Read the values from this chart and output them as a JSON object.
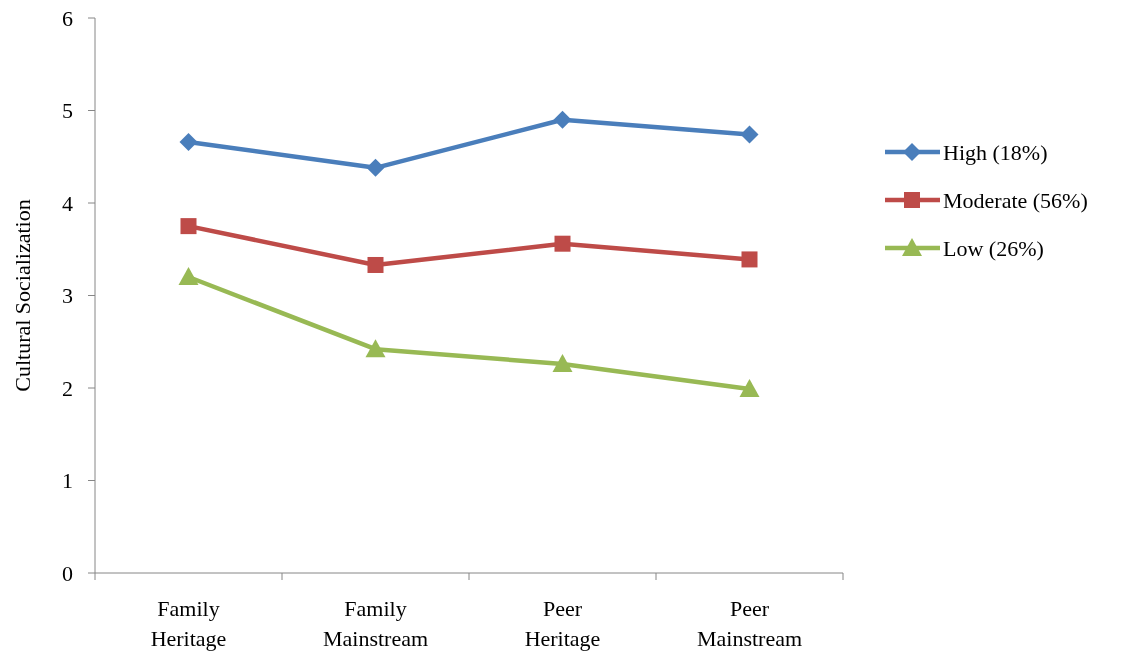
{
  "chart_data": {
    "type": "line",
    "ylabel": "Cultural Socialization",
    "categories": [
      "Family Heritage",
      "Family Mainstream",
      "Peer Heritage",
      "Peer Mainstream"
    ],
    "series": [
      {
        "name": "High (18%)",
        "color": "#4a7ebb",
        "values": [
          4.66,
          4.38,
          4.9,
          4.74
        ],
        "marker": "diamond"
      },
      {
        "name": "Moderate (56%)",
        "color": "#be4b48",
        "values": [
          3.75,
          3.33,
          3.56,
          3.39
        ],
        "marker": "square"
      },
      {
        "name": "Low (26%)",
        "color": "#98b954",
        "values": [
          3.2,
          2.42,
          2.26,
          1.99
        ],
        "marker": "triangle"
      }
    ],
    "ylim": [
      0,
      6
    ],
    "yticks": [
      0,
      1,
      2,
      3,
      4,
      5,
      6
    ],
    "grid": false,
    "legend": "right",
    "line_style": "solid"
  }
}
